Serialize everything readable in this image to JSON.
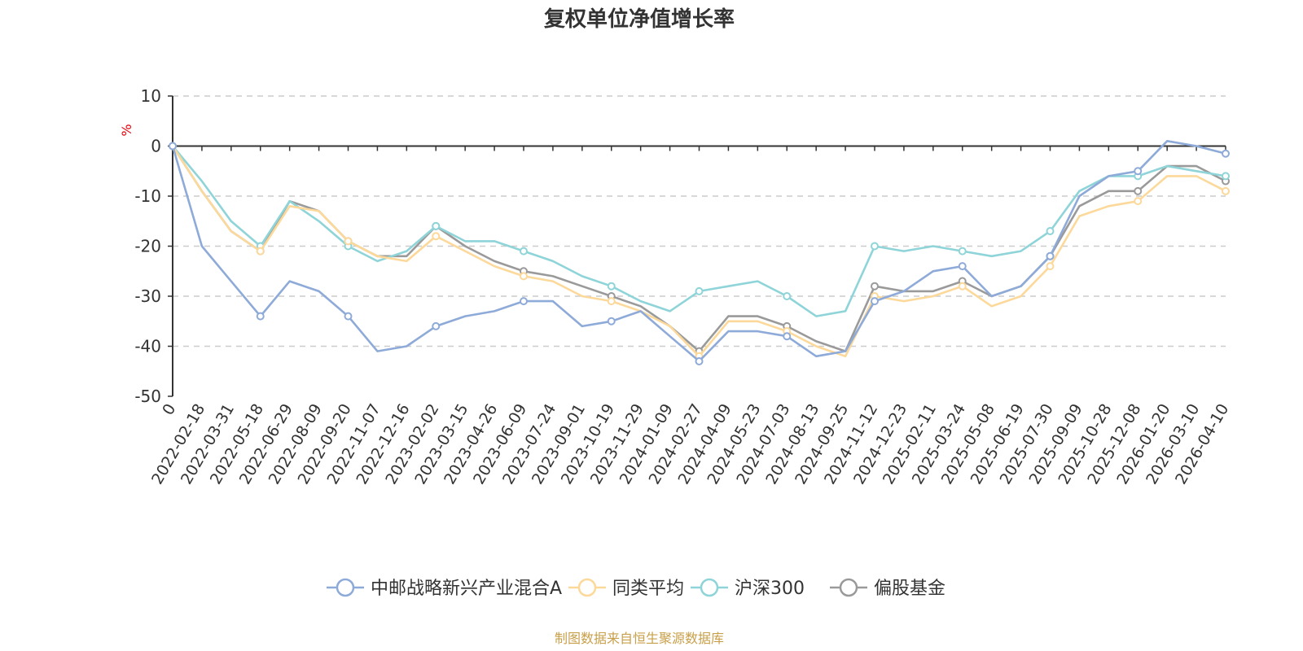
{
  "chart_data": {
    "type": "line",
    "title": "复权单位净值增长率",
    "ylabel": "%",
    "ylim": [
      -50,
      10
    ],
    "yticks": [
      10,
      0,
      -10,
      -20,
      -30,
      -40,
      -50
    ],
    "grid": true,
    "legend_position": "bottom-center",
    "source": "制图数据来自恒生聚源数据库",
    "x": [
      "0",
      "2022-02-18",
      "2022-03-31",
      "2022-05-18",
      "2022-06-29",
      "2022-08-09",
      "2022-09-20",
      "2022-11-07",
      "2022-12-16",
      "2023-02-02",
      "2023-03-15",
      "2023-04-26",
      "2023-06-09",
      "2023-07-24",
      "2023-09-01",
      "2023-10-19",
      "2023-11-29",
      "2024-01-09",
      "2024-02-27",
      "2024-04-09",
      "2024-05-23",
      "2024-07-03",
      "2024-08-13",
      "2024-09-25",
      "2024-11-12",
      "2024-12-23",
      "2025-02-11",
      "2025-03-24",
      "2025-05-08",
      "2025-06-19",
      "2025-07-30",
      "2025-09-09",
      "2025-10-28",
      "2025-12-08",
      "2026-01-20",
      "2026-03-10",
      "2026-04-10"
    ],
    "series": [
      {
        "name": "中邮战略新兴产业混合A",
        "color": "#8eaad8",
        "values": [
          0,
          -20,
          -27,
          -34,
          -27,
          -29,
          -34,
          -41,
          -40,
          -36,
          -34,
          -33,
          -31,
          -31,
          -36,
          -35,
          -33,
          -38,
          -43,
          -37,
          -37,
          -38,
          -42,
          -41,
          -31,
          -29,
          -25,
          -24,
          -30,
          -28,
          -22,
          -10,
          -6,
          -5,
          1,
          0,
          -1.5
        ]
      },
      {
        "name": "同类平均",
        "color": "#fcd99a",
        "values": [
          0,
          -9,
          -17,
          -21,
          -12,
          -13,
          -19,
          -22,
          -23,
          -18,
          -21,
          -24,
          -26,
          -27,
          -30,
          -31,
          -33,
          -36,
          -42,
          -35,
          -35,
          -37,
          -40,
          -42,
          -30,
          -31,
          -30,
          -28,
          -32,
          -30,
          -24,
          -14,
          -12,
          -11,
          -6,
          -6,
          -9
        ]
      },
      {
        "name": "沪深300",
        "color": "#8ed4d8",
        "values": [
          0,
          -7,
          -15,
          -20,
          -11,
          -15,
          -20,
          -23,
          -21,
          -16,
          -19,
          -19,
          -21,
          -23,
          -26,
          -28,
          -31,
          -33,
          -29,
          -28,
          -27,
          -30,
          -34,
          -33,
          -20,
          -21,
          -20,
          -21,
          -22,
          -21,
          -17,
          -9,
          -6,
          -6,
          -4,
          -5,
          -6
        ]
      },
      {
        "name": "偏股基金",
        "color": "#9a9a9a",
        "values": [
          0,
          -9,
          -17,
          -21,
          -11,
          -13,
          -19,
          -22,
          -22,
          -16,
          -20,
          -23,
          -25,
          -26,
          -28,
          -30,
          -32,
          -36,
          -41,
          -34,
          -34,
          -36,
          -39,
          -41,
          -28,
          -29,
          -29,
          -27,
          -30,
          -28,
          -22,
          -12,
          -9,
          -9,
          -4,
          -4,
          -7
        ]
      }
    ]
  }
}
